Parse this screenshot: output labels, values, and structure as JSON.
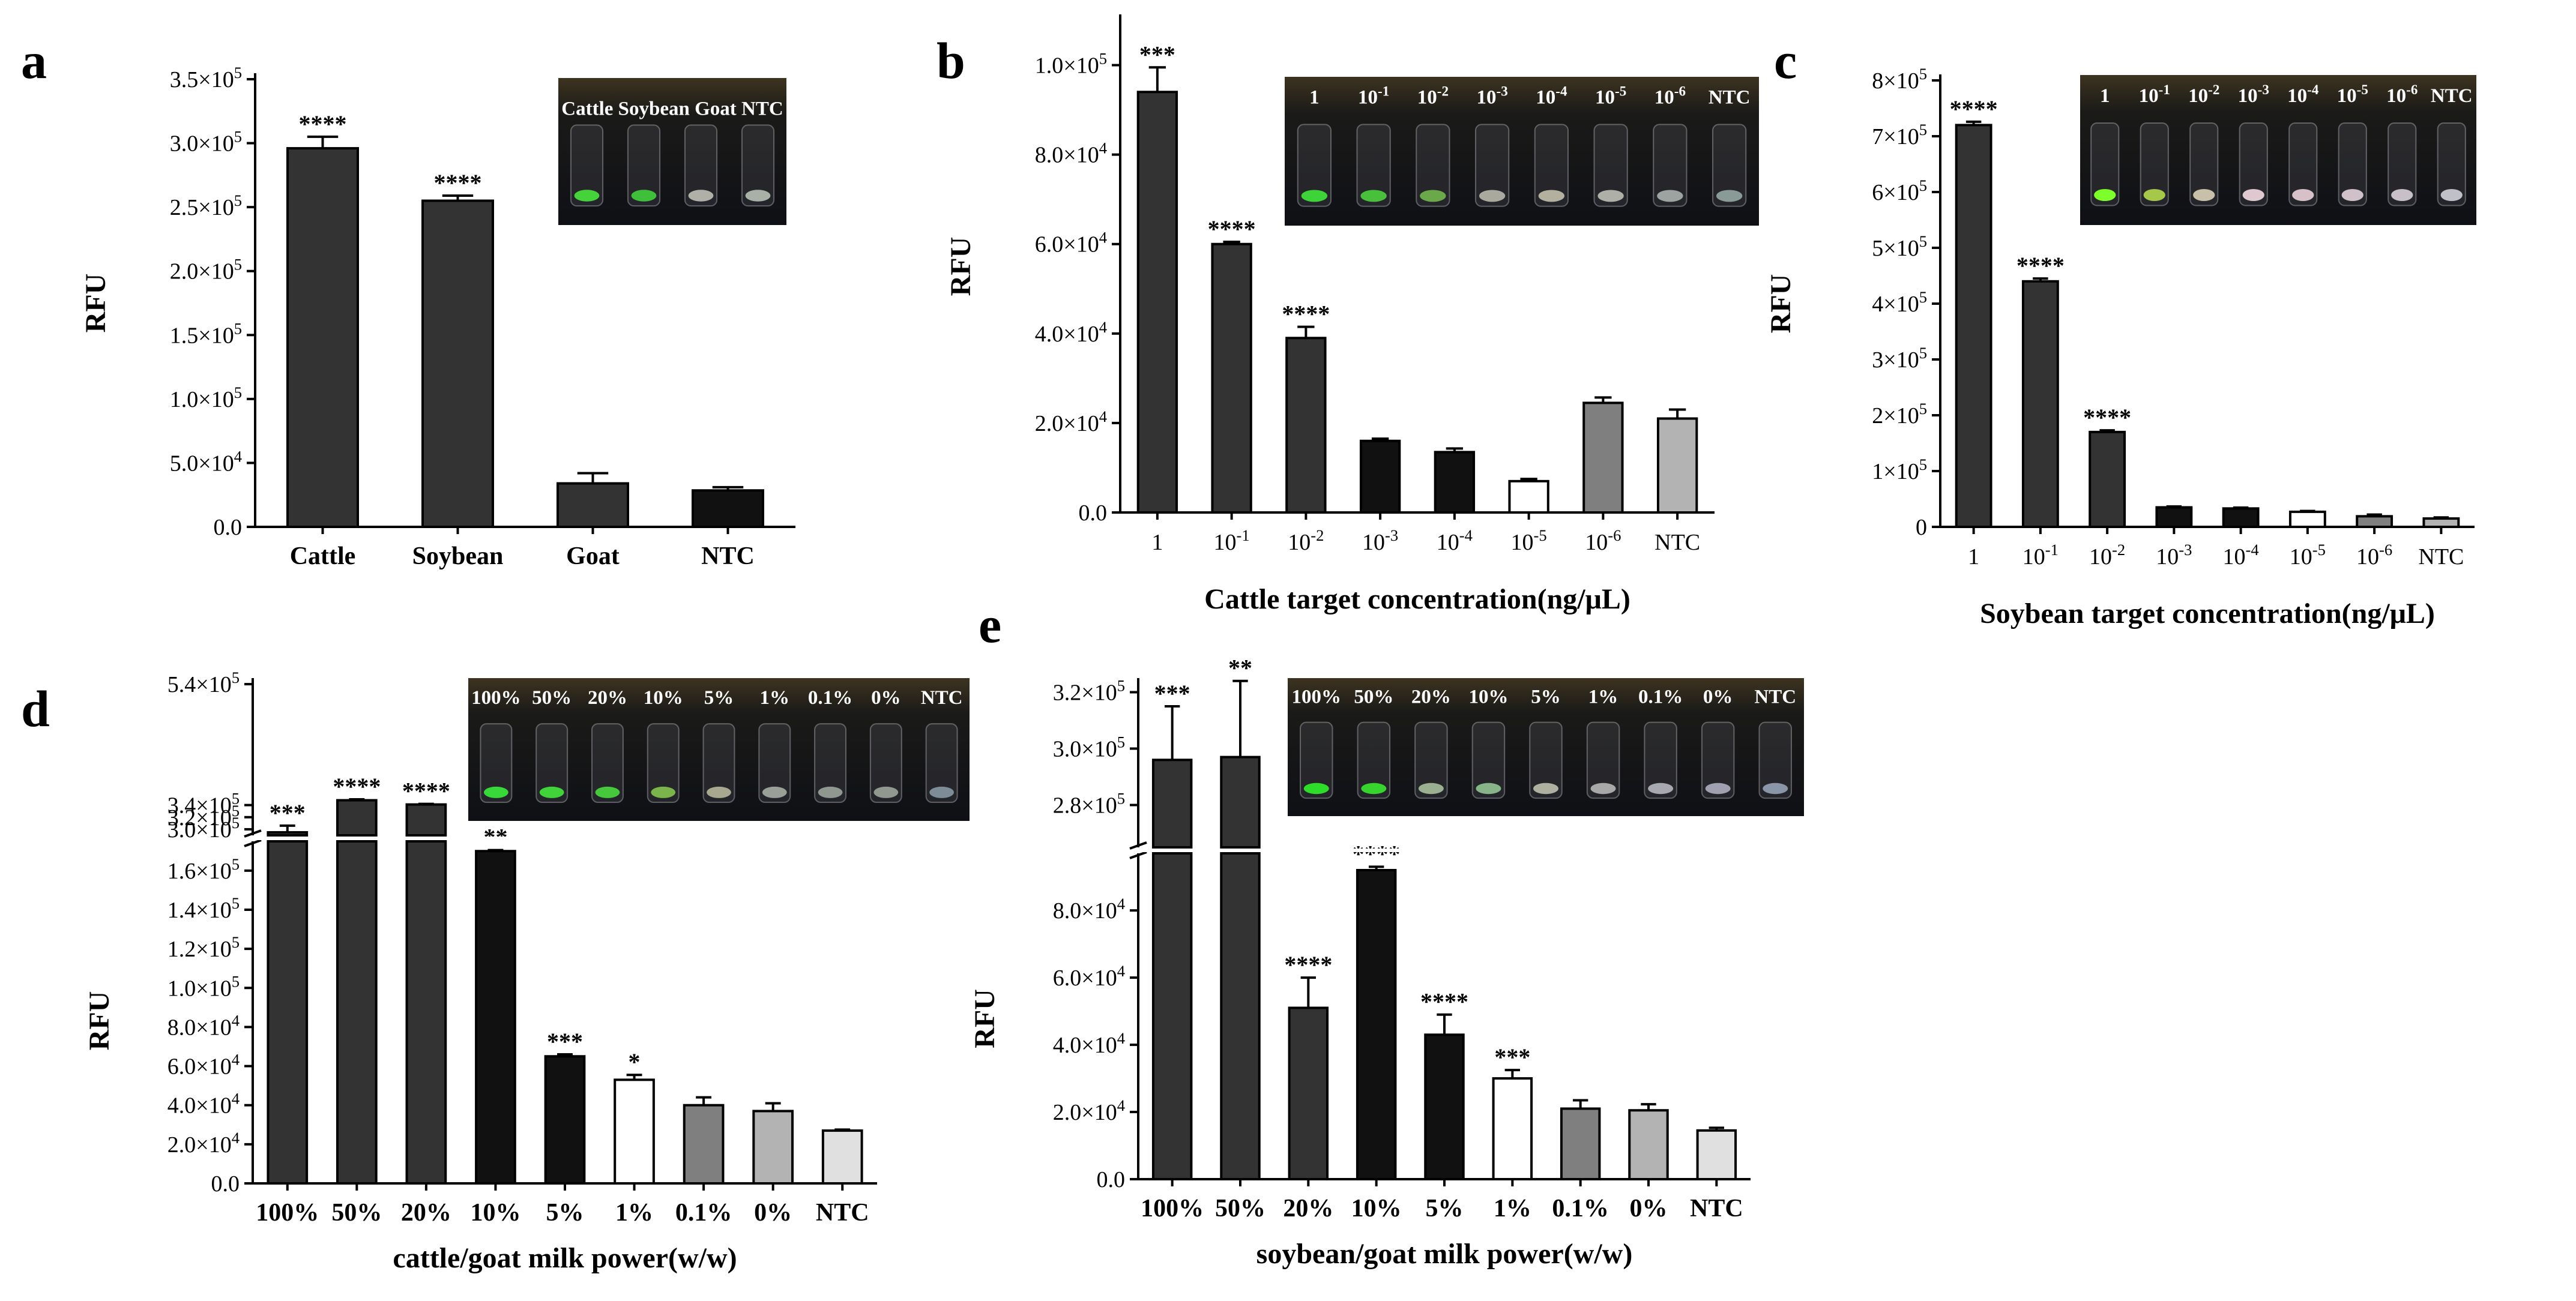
{
  "chart_data": [
    {
      "panel": "a",
      "type": "bar",
      "ylabel": "RFU",
      "xlabel": "",
      "ylim": [
        0,
        350000
      ],
      "yticks": [
        {
          "v": 0,
          "label": "0.0"
        },
        {
          "v": 50000,
          "label": "5.0×10^4"
        },
        {
          "v": 100000,
          "label": "1.0×10^5"
        },
        {
          "v": 150000,
          "label": "1.5×10^5"
        },
        {
          "v": 200000,
          "label": "2.0×10^5"
        },
        {
          "v": 250000,
          "label": "2.5×10^5"
        },
        {
          "v": 300000,
          "label": "3.0×10^5"
        },
        {
          "v": 350000,
          "label": "3.5×10^5"
        }
      ],
      "categories": [
        "Cattle",
        "Soybean",
        "Goat",
        "NTC"
      ],
      "values": [
        296000,
        255000,
        34000,
        28500
      ],
      "errors": [
        9000,
        4000,
        8000,
        2500
      ],
      "significance": [
        "****",
        "****",
        "",
        ""
      ],
      "colors": [
        "#333333",
        "#333333",
        "#333333",
        "#111111"
      ],
      "photo_labels": [
        "Cattle Soybean Goat NTC"
      ]
    },
    {
      "panel": "b",
      "type": "bar",
      "ylabel": "RFU",
      "xlabel": "Cattle target concentration(ng/μL)",
      "ylim": [
        0,
        110000
      ],
      "yticks": [
        {
          "v": 0,
          "label": "0.0"
        },
        {
          "v": 20000,
          "label": "2.0×10^4"
        },
        {
          "v": 40000,
          "label": "4.0×10^4"
        },
        {
          "v": 60000,
          "label": "6.0×10^4"
        },
        {
          "v": 80000,
          "label": "8.0×10^4"
        },
        {
          "v": 100000,
          "label": "1.0×10^5"
        }
      ],
      "categories": [
        "1",
        "10^-1",
        "10^-2",
        "10^-3",
        "10^-4",
        "10^-5",
        "10^-6",
        "NTC"
      ],
      "values": [
        94000,
        60000,
        39000,
        16000,
        13500,
        7000,
        24500,
        21000
      ],
      "errors": [
        5500,
        500,
        2500,
        500,
        800,
        500,
        1200,
        2000
      ],
      "significance": [
        "***",
        "****",
        "****",
        "",
        "",
        "",
        "",
        ""
      ],
      "colors": [
        "#333333",
        "#333333",
        "#333333",
        "#111111",
        "#111111",
        "#ffffff",
        "#7f7f7f",
        "#b3b3b3"
      ],
      "photo_labels": [
        "1",
        "10^-1",
        "10^-2",
        "10^-3",
        "10^-4",
        "10^-5",
        "10^-6",
        "NTC"
      ]
    },
    {
      "panel": "c",
      "type": "bar",
      "ylabel": "RFU",
      "xlabel": "Soybean target concentration(ng/μL)",
      "ylim": [
        0,
        800000
      ],
      "yticks": [
        {
          "v": 0,
          "label": "0"
        },
        {
          "v": 100000,
          "label": "1×10^5"
        },
        {
          "v": 200000,
          "label": "2×10^5"
        },
        {
          "v": 300000,
          "label": "3×10^5"
        },
        {
          "v": 400000,
          "label": "4×10^5"
        },
        {
          "v": 500000,
          "label": "5×10^5"
        },
        {
          "v": 600000,
          "label": "6×10^5"
        },
        {
          "v": 700000,
          "label": "7×10^5"
        },
        {
          "v": 800000,
          "label": "8×10^5"
        }
      ],
      "categories": [
        "1",
        "10^-1",
        "10^-2",
        "10^-3",
        "10^-4",
        "10^-5",
        "10^-6",
        "NTC"
      ],
      "values": [
        720000,
        440000,
        170000,
        35000,
        33000,
        27000,
        19000,
        15000
      ],
      "errors": [
        6000,
        5000,
        3000,
        1500,
        1500,
        1500,
        3000,
        2000
      ],
      "significance": [
        "****",
        "****",
        "****",
        "",
        "",
        "",
        "",
        ""
      ],
      "colors": [
        "#333333",
        "#333333",
        "#333333",
        "#111111",
        "#111111",
        "#ffffff",
        "#7f7f7f",
        "#b3b3b3"
      ],
      "photo_labels": [
        "1",
        "10^-1",
        "10^-2",
        "10^-3",
        "10^-4",
        "10^-5",
        "10^-6",
        "NTC"
      ]
    },
    {
      "panel": "d",
      "type": "bar",
      "ylabel": "RFU",
      "xlabel": "cattle/goat milk power(w/w)",
      "axis_break": true,
      "ylim_lower": [
        0,
        175000
      ],
      "ylim_upper": [
        290000,
        550000
      ],
      "yticks_lower": [
        {
          "v": 0,
          "label": "0.0"
        },
        {
          "v": 20000,
          "label": "2.0×10^4"
        },
        {
          "v": 40000,
          "label": "4.0×10^4"
        },
        {
          "v": 60000,
          "label": "6.0×10^4"
        },
        {
          "v": 80000,
          "label": "8.0×10^4"
        },
        {
          "v": 100000,
          "label": "1.0×10^5"
        },
        {
          "v": 120000,
          "label": "1.2×10^5"
        },
        {
          "v": 140000,
          "label": "1.4×10^5"
        },
        {
          "v": 160000,
          "label": "1.6×10^5"
        }
      ],
      "yticks_upper": [
        {
          "v": 300000,
          "label": "3.0×10^5"
        },
        {
          "v": 320000,
          "label": "3.2×10^5"
        },
        {
          "v": 340000,
          "label": "3.4×10^5"
        },
        {
          "v": 540000,
          "label": "5.4×10^5"
        }
      ],
      "categories": [
        "100%",
        "50%",
        "20%",
        "10%",
        "5%",
        "1%",
        "0.1%",
        "0%",
        "NTC"
      ],
      "values": [
        295000,
        348000,
        341000,
        170000,
        65000,
        53000,
        40000,
        37000,
        27000
      ],
      "errors": [
        11000,
        1500,
        1000,
        500,
        1000,
        2500,
        4000,
        4000,
        500
      ],
      "significance": [
        "***",
        "****",
        "****",
        "**",
        "***",
        "*",
        "",
        "",
        ""
      ],
      "colors": [
        "#333333",
        "#333333",
        "#333333",
        "#111111",
        "#111111",
        "#ffffff",
        "#7f7f7f",
        "#b3b3b3",
        "#e0e0e0"
      ],
      "photo_labels": [
        "100%",
        "50%",
        "20%",
        "10%",
        "5%",
        "1%",
        "0.1%",
        "0%",
        "NTC"
      ]
    },
    {
      "panel": "e",
      "type": "bar",
      "ylabel": "RFU",
      "xlabel": "soybean/goat milk power(w/w)",
      "axis_break": true,
      "ylim_lower": [
        0,
        97000
      ],
      "ylim_upper": [
        265000,
        325000
      ],
      "yticks_lower": [
        {
          "v": 0,
          "label": "0.0"
        },
        {
          "v": 20000,
          "label": "2.0×10^4"
        },
        {
          "v": 40000,
          "label": "4.0×10^4"
        },
        {
          "v": 60000,
          "label": "6.0×10^4"
        },
        {
          "v": 80000,
          "label": "8.0×10^4"
        }
      ],
      "yticks_upper": [
        {
          "v": 280000,
          "label": "2.8×10^5"
        },
        {
          "v": 300000,
          "label": "3.0×10^5"
        },
        {
          "v": 320000,
          "label": "3.2×10^5"
        }
      ],
      "categories": [
        "100%",
        "50%",
        "20%",
        "10%",
        "5%",
        "1%",
        "0.1%",
        "0%",
        "NTC"
      ],
      "values": [
        296000,
        297000,
        51000,
        92000,
        43000,
        30000,
        21000,
        20500,
        14500
      ],
      "errors": [
        19000,
        27000,
        9000,
        1000,
        6000,
        2500,
        2500,
        1800,
        800
      ],
      "significance": [
        "***",
        "**",
        "****",
        "****",
        "****",
        "***",
        "",
        "",
        ""
      ],
      "colors": [
        "#333333",
        "#333333",
        "#333333",
        "#111111",
        "#111111",
        "#ffffff",
        "#7f7f7f",
        "#b3b3b3",
        "#e0e0e0"
      ],
      "photo_labels": [
        "100%",
        "50%",
        "20%",
        "10%",
        "5%",
        "1%",
        "0.1%",
        "0%",
        "NTC"
      ]
    }
  ],
  "panel_labels": [
    "a",
    "b",
    "c",
    "d",
    "e"
  ]
}
